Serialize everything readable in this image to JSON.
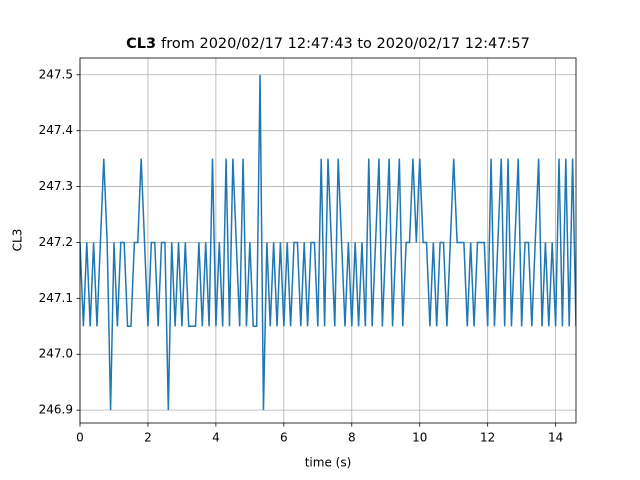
{
  "chart_data": {
    "type": "line",
    "title": {
      "name": "CL3",
      "range": "from 2020/02/17 12:47:43 to 2020/02/17 12:47:57"
    },
    "xlabel": "time (s)",
    "ylabel": "CL3",
    "x": [
      0,
      0.1,
      0.2,
      0.3,
      0.4,
      0.5,
      0.6,
      0.7,
      0.8,
      0.9,
      1,
      1.1,
      1.2,
      1.3,
      1.4,
      1.5,
      1.6,
      1.7,
      1.8,
      1.9,
      2,
      2.1,
      2.2,
      2.3,
      2.4,
      2.5,
      2.6,
      2.7,
      2.8,
      2.9,
      3,
      3.1,
      3.2,
      3.3,
      3.4,
      3.5,
      3.6,
      3.7,
      3.8,
      3.9,
      4,
      4.1,
      4.2,
      4.3,
      4.4,
      4.5,
      4.6,
      4.7,
      4.8,
      4.9,
      5,
      5.1,
      5.2,
      5.3,
      5.4,
      5.5,
      5.6,
      5.7,
      5.8,
      5.9,
      6,
      6.1,
      6.2,
      6.3,
      6.4,
      6.5,
      6.6,
      6.7,
      6.8,
      6.9,
      7,
      7.1,
      7.2,
      7.3,
      7.4,
      7.5,
      7.6,
      7.7,
      7.8,
      7.9,
      8,
      8.1,
      8.2,
      8.3,
      8.4,
      8.5,
      8.6,
      8.7,
      8.8,
      8.9,
      9,
      9.1,
      9.2,
      9.3,
      9.4,
      9.5,
      9.6,
      9.7,
      9.8,
      9.9,
      10,
      10.1,
      10.2,
      10.3,
      10.4,
      10.5,
      10.6,
      10.7,
      10.8,
      10.9,
      11,
      11.1,
      11.2,
      11.3,
      11.4,
      11.5,
      11.6,
      11.7,
      11.8,
      11.9,
      12,
      12.1,
      12.2,
      12.3,
      12.4,
      12.5,
      12.6,
      12.7,
      12.8,
      12.9,
      13,
      13.1,
      13.2,
      13.3,
      13.4,
      13.5,
      13.6,
      13.7,
      13.8,
      13.9,
      14,
      14.1,
      14.2,
      14.3,
      14.4,
      14.5,
      14.6
    ],
    "series": [
      {
        "name": "CL3",
        "color": "#1f77b4",
        "values": [
          247.2,
          247.05,
          247.2,
          247.05,
          247.2,
          247.05,
          247.2,
          247.35,
          247.2,
          246.9,
          247.2,
          247.05,
          247.2,
          247.2,
          247.05,
          247.05,
          247.2,
          247.2,
          247.35,
          247.2,
          247.05,
          247.2,
          247.2,
          247.05,
          247.2,
          247.2,
          246.9,
          247.2,
          247.05,
          247.2,
          247.05,
          247.2,
          247.05,
          247.05,
          247.05,
          247.2,
          247.05,
          247.2,
          247.05,
          247.35,
          247.05,
          247.2,
          247.05,
          247.35,
          247.05,
          247.35,
          247.2,
          247.05,
          247.35,
          247.05,
          247.2,
          247.05,
          247.05,
          247.5,
          246.9,
          247.2,
          247.05,
          247.2,
          247.05,
          247.2,
          247.05,
          247.2,
          247.05,
          247.2,
          247.2,
          247.05,
          247.2,
          247.05,
          247.2,
          247.2,
          247.05,
          247.35,
          247.05,
          247.35,
          247.2,
          247.05,
          247.35,
          247.2,
          247.05,
          247.2,
          247.05,
          247.2,
          247.05,
          247.2,
          247.05,
          247.35,
          247.05,
          247.2,
          247.35,
          247.05,
          247.2,
          247.35,
          247.05,
          247.2,
          247.35,
          247.05,
          247.2,
          247.2,
          247.35,
          247.2,
          247.35,
          247.2,
          247.2,
          247.05,
          247.2,
          247.05,
          247.2,
          247.2,
          247.05,
          247.2,
          247.35,
          247.2,
          247.2,
          247.2,
          247.05,
          247.2,
          247.05,
          247.2,
          247.2,
          247.2,
          247.05,
          247.35,
          247.05,
          247.2,
          247.35,
          247.05,
          247.35,
          247.05,
          247.2,
          247.35,
          247.05,
          247.2,
          247.2,
          247.05,
          247.2,
          247.35,
          247.05,
          247.2,
          247.05,
          247.2,
          247.05,
          247.35,
          247.05,
          247.35,
          247.05,
          247.35,
          247.05
        ]
      }
    ],
    "xlim": [
      0,
      14.6
    ],
    "xticks": [
      0,
      2,
      4,
      6,
      8,
      10,
      12,
      14
    ],
    "ylim": [
      246.877,
      247.53
    ],
    "yticks": [
      246.9,
      {
        "value": 247,
        "label": "247.0"
      },
      247.1,
      247.2,
      247.3,
      247.4,
      247.5
    ],
    "grid": true
  }
}
